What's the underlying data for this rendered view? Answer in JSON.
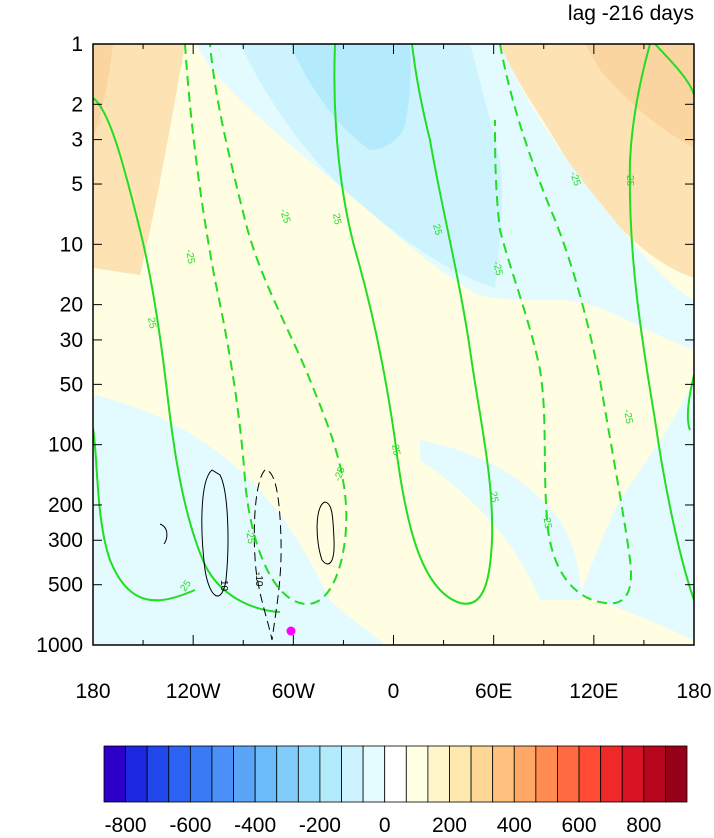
{
  "chart_data": {
    "type": "heatmap",
    "title": "lag -216 days",
    "x_ticks": [
      "180",
      "120W",
      "60W",
      "0",
      "60E",
      "120E",
      "180"
    ],
    "y_ticks": [
      "1",
      "2",
      "3",
      "5",
      "10",
      "20",
      "30",
      "50",
      "100",
      "200",
      "300",
      "500",
      "1000"
    ],
    "y_scale": "log",
    "y_range": [
      1000,
      1
    ],
    "x_range": [
      -180,
      180
    ],
    "colorbar": {
      "labels": [
        "-800",
        "-600",
        "-400",
        "-200",
        "0",
        "200",
        "400",
        "600",
        "800"
      ],
      "colors": [
        "#2c00c8",
        "#1d29e0",
        "#1f47ea",
        "#2d63f2",
        "#3a7af4",
        "#4b90f6",
        "#5aa5f8",
        "#6bbaf9",
        "#80cdfb",
        "#98ddfc",
        "#b3ebfd",
        "#cdf4fe",
        "#e4fbff",
        "#ffffff",
        "#ffffe4",
        "#fff5c8",
        "#ffe8ad",
        "#ffd795",
        "#ffc17d",
        "#ffa766",
        "#ff8a52",
        "#ff6a42",
        "#ff4a34",
        "#f0282a",
        "#d81424",
        "#b8061e",
        "#960019"
      ]
    },
    "contours": [
      {
        "value": 25,
        "color": "#22dd22",
        "style": "solid",
        "labels": [
          "25"
        ]
      },
      {
        "value": -25,
        "color": "#22dd22",
        "style": "dashed",
        "labels": [
          "-25"
        ]
      },
      {
        "value": 10,
        "color": "#000000",
        "style": "solid",
        "labels": [
          "10"
        ]
      },
      {
        "value": -10,
        "color": "#000000",
        "style": "dashed",
        "labels": [
          "-10"
        ]
      }
    ],
    "marker": {
      "lon": -60,
      "level_hpa": 850,
      "color": "#ff00ff"
    }
  }
}
